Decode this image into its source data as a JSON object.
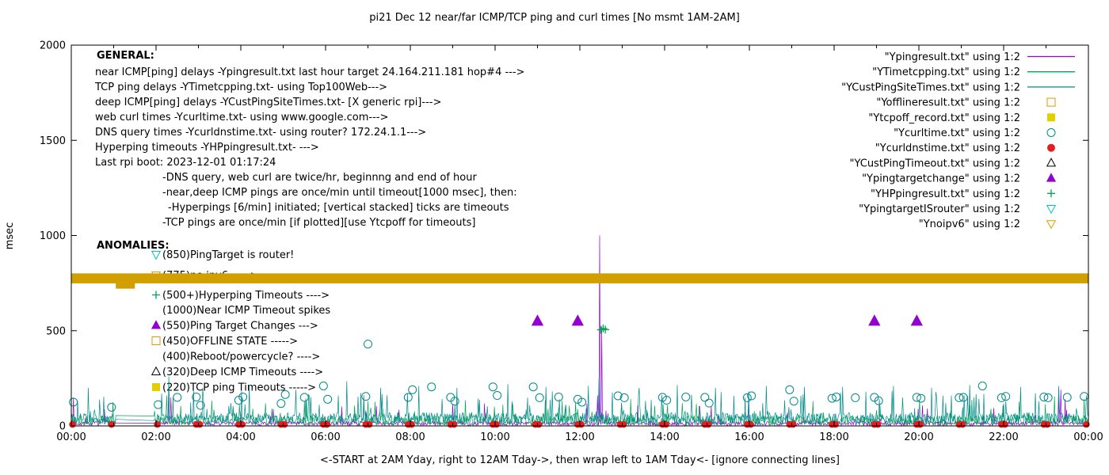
{
  "title": "pi21 Dec 12  near/far ICMP/TCP ping and curl times [No msmt 1AM-2AM]",
  "ylabel": "msec",
  "xlabel": "<-START at 2AM Yday, right to 12AM Tday->, then wrap left to 1AM Tday<- [ignore connecting lines]",
  "general": {
    "heading": "GENERAL:",
    "lines": [
      {
        "indent": 0,
        "text": "near ICMP[ping] delays -Ypingresult.txt last hour target 24.164.211.181 hop#4 --->"
      },
      {
        "indent": 0,
        "text": "TCP ping delays -YTimetcpping.txt- using Top100Web--->"
      },
      {
        "indent": 0,
        "text": "deep ICMP[ping] delays -YCustPingSiteTimes.txt- [X generic rpi]--->"
      },
      {
        "indent": 0,
        "text": "web curl times -Ycurltime.txt- using www.google.com--->"
      },
      {
        "indent": 0,
        "text": "DNS query times -Ycurldnstime.txt- using router? 172.24.1.1--->"
      },
      {
        "indent": 0,
        "text": "Hyperping timeouts -YHPpingresult.txt- --->"
      },
      {
        "indent": 0,
        "text": "Last rpi boot: 2023-12-01 01:17:24"
      },
      {
        "indent": 1,
        "text": "-DNS query, web curl are twice/hr, beginnng and end of hour"
      },
      {
        "indent": 1,
        "text": "-near,deep ICMP pings are once/min until timeout[1000 msec], then:"
      },
      {
        "indent": 2,
        "text": "-Hyperpings [6/min] initiated; [vertical stacked] ticks are timeouts"
      },
      {
        "indent": 1,
        "text": "-TCP pings are once/min [if plotted][use Ytcpoff for timeouts]"
      }
    ]
  },
  "anomalies": {
    "heading": "ANOMALIES:",
    "items": [
      {
        "icon": "triangle-down-open",
        "color": "#00c3c3",
        "text": "(850)PingTarget is router!"
      },
      {
        "icon": "triangle-down-open",
        "color": "#e69500",
        "text": "(775)no ipv6 ----->"
      },
      {
        "icon": "plus",
        "color": "#00a550",
        "text": "(500+)Hyperping Timeouts ---->"
      },
      {
        "icon": null,
        "color": null,
        "text": "(1000)Near ICMP Timeout spikes"
      },
      {
        "icon": "triangle-up-filled",
        "color": "#9400d3",
        "text": "(550)Ping Target Changes --->"
      },
      {
        "icon": "square-open",
        "color": "#e69500",
        "text": "(450)OFFLINE STATE ----->"
      },
      {
        "icon": null,
        "color": null,
        "text": "(400)Reboot/powercycle? ---->"
      },
      {
        "icon": "triangle-up-open",
        "color": "#000000",
        "text": "(320)Deep ICMP Timeouts ---->"
      },
      {
        "icon": "square-filled",
        "color": "#e3cf00",
        "text": "(220)TCP ping Timeouts ----->"
      }
    ]
  },
  "legend": [
    {
      "label": "\"Ypingresult.txt\" using 1:2",
      "sample": "line",
      "color": "#9400d3"
    },
    {
      "label": "\"YTimetcpping.txt\" using 1:2",
      "sample": "line",
      "color": "#00a550"
    },
    {
      "label": "\"YCustPingSiteTimes.txt\" using 1:2",
      "sample": "line",
      "color": "#008b8b"
    },
    {
      "label": "\"Yofflineresult.txt\" using 1:2",
      "sample": "square-open",
      "color": "#e69500"
    },
    {
      "label": "\"Ytcpoff_record.txt\" using 1:2",
      "sample": "square-filled",
      "color": "#e3cf00"
    },
    {
      "label": "\"Ycurltime.txt\" using 1:2",
      "sample": "circle-open",
      "color": "#008b8b"
    },
    {
      "label": "\"Ycurldnstime.txt\" using 1:2",
      "sample": "circle-filled",
      "color": "#e02020"
    },
    {
      "label": "\"YCustPingTimeout.txt\" using 1:2",
      "sample": "triangle-up-open",
      "color": "#000000"
    },
    {
      "label": "\"Ypingtargetchange\" using 1:2",
      "sample": "triangle-up-filled",
      "color": "#9400d3"
    },
    {
      "label": "\"YHPpingresult.txt\" using 1:2",
      "sample": "plus",
      "color": "#00a550"
    },
    {
      "label": "\"YpingtargetISrouter\" using 1:2",
      "sample": "triangle-down-open",
      "color": "#00c3c3"
    },
    {
      "label": "\"Ynoipv6\" using 1:2",
      "sample": "triangle-down-open",
      "color": "#e69500"
    }
  ],
  "chart_data": {
    "type": "line",
    "title": "pi21 Dec 12  near/far ICMP/TCP ping and curl times [No msmt 1AM-2AM]",
    "xlabel": "<-START at 2AM Yday, right to 12AM Tday->, then wrap left to 1AM Tday<- [ignore connecting lines]",
    "ylabel": "msec",
    "xlim": [
      0,
      24
    ],
    "ylim": [
      0,
      2000
    ],
    "yticks": [
      0,
      500,
      1000,
      1500,
      2000
    ],
    "xtick_labels": [
      "00:00",
      "02:00",
      "04:00",
      "06:00",
      "08:00",
      "10:00",
      "12:00",
      "14:00",
      "16:00",
      "18:00",
      "20:00",
      "22:00",
      "00:00"
    ],
    "gap_hours": [
      1,
      2
    ],
    "legend_position": "top-right",
    "grid": false,
    "series": [
      {
        "name": "Ypingresult.txt",
        "style": "line",
        "color": "#9400d3",
        "seed": 7,
        "base": [
          2,
          25
        ],
        "spike_chance": 0.03,
        "spike": [
          35,
          120
        ],
        "events": [
          [
            0.05,
            150
          ],
          [
            2.3,
            190
          ],
          [
            2.35,
            150
          ],
          [
            12.42,
            160
          ],
          [
            12.47,
            1000
          ],
          [
            12.52,
            520
          ],
          [
            23.3,
            160
          ],
          [
            23.35,
            190
          ],
          [
            23.45,
            140
          ]
        ]
      },
      {
        "name": "YTimetcpping.txt",
        "style": "line",
        "color": "#00a550",
        "seed": 13,
        "base": [
          3,
          55
        ],
        "spike_chance": 0.05,
        "spike": [
          60,
          140
        ],
        "events": [
          [
            2.25,
            160
          ],
          [
            2.4,
            150
          ],
          [
            5.5,
            130
          ],
          [
            9.3,
            135
          ],
          [
            13.2,
            140
          ],
          [
            17.5,
            130
          ],
          [
            21.3,
            150
          ],
          [
            23.2,
            155
          ],
          [
            23.9,
            140
          ]
        ]
      },
      {
        "name": "YCustPingSiteTimes.txt",
        "style": "line",
        "color": "#008b8b",
        "seed": 21,
        "base": [
          10,
          70
        ],
        "spike_chance": 0.08,
        "spike": [
          75,
          190
        ],
        "events": [
          [
            0.4,
            200
          ],
          [
            2.3,
            260
          ],
          [
            3.1,
            200
          ],
          [
            4.2,
            215
          ],
          [
            5.3,
            190
          ],
          [
            6.5,
            235
          ],
          [
            7.3,
            200
          ],
          [
            8.2,
            210
          ],
          [
            9.1,
            200
          ],
          [
            10.3,
            220
          ],
          [
            11.2,
            205
          ],
          [
            12.2,
            210
          ],
          [
            12.45,
            250
          ],
          [
            13.4,
            200
          ],
          [
            14.3,
            215
          ],
          [
            15.2,
            200
          ],
          [
            16.4,
            210
          ],
          [
            17.3,
            205
          ],
          [
            18.2,
            205
          ],
          [
            19.4,
            210
          ],
          [
            20.3,
            200
          ],
          [
            21.2,
            215
          ],
          [
            22.4,
            205
          ],
          [
            23.3,
            210
          ],
          [
            23.95,
            160
          ]
        ]
      },
      {
        "name": "Ycurltime.txt",
        "style": "circle-open",
        "color": "#008b8b",
        "size": 5,
        "points": [
          [
            0.05,
            125
          ],
          [
            0.95,
            98
          ],
          [
            2.05,
            112
          ],
          [
            2.5,
            150
          ],
          [
            2.95,
            152
          ],
          [
            3.05,
            108
          ],
          [
            3.95,
            135
          ],
          [
            4.05,
            152
          ],
          [
            4.95,
            118
          ],
          [
            5.05,
            165
          ],
          [
            5.5,
            150
          ],
          [
            5.95,
            210
          ],
          [
            6.05,
            140
          ],
          [
            6.95,
            155
          ],
          [
            7.0,
            430
          ],
          [
            7.95,
            150
          ],
          [
            8.05,
            190
          ],
          [
            8.5,
            205
          ],
          [
            8.95,
            150
          ],
          [
            9.05,
            130
          ],
          [
            9.95,
            205
          ],
          [
            10.05,
            160
          ],
          [
            10.9,
            205
          ],
          [
            11.05,
            148
          ],
          [
            11.5,
            152
          ],
          [
            11.95,
            140
          ],
          [
            12.05,
            125
          ],
          [
            12.9,
            158
          ],
          [
            13.05,
            148
          ],
          [
            13.95,
            150
          ],
          [
            14.05,
            135
          ],
          [
            14.5,
            152
          ],
          [
            14.95,
            150
          ],
          [
            15.05,
            120
          ],
          [
            15.95,
            148
          ],
          [
            16.05,
            158
          ],
          [
            16.95,
            190
          ],
          [
            17.05,
            130
          ],
          [
            17.95,
            145
          ],
          [
            18.05,
            152
          ],
          [
            18.5,
            148
          ],
          [
            18.95,
            150
          ],
          [
            19.05,
            132
          ],
          [
            19.95,
            150
          ],
          [
            20.05,
            145
          ],
          [
            20.95,
            148
          ],
          [
            21.05,
            150
          ],
          [
            21.5,
            210
          ],
          [
            21.95,
            148
          ],
          [
            22.05,
            155
          ],
          [
            22.95,
            152
          ],
          [
            23.05,
            148
          ],
          [
            23.5,
            150
          ],
          [
            23.9,
            155
          ]
        ]
      },
      {
        "name": "Ycurldnstime.txt",
        "style": "circle-filled",
        "color": "#e02020",
        "size": 4.3,
        "y": 8,
        "xs": [
          0.03,
          0.95,
          2.03,
          2.95,
          3.03,
          3.95,
          4.03,
          4.95,
          5.03,
          5.95,
          6.03,
          6.95,
          7.03,
          7.95,
          8.03,
          8.95,
          9.03,
          9.95,
          10.03,
          10.95,
          11.03,
          11.95,
          12.03,
          12.95,
          13.03,
          13.95,
          14.03,
          14.95,
          15.03,
          15.95,
          16.03,
          16.95,
          17.03,
          17.95,
          18.03,
          18.95,
          19.03,
          19.95,
          20.03,
          20.95,
          21.03,
          21.95,
          22.03,
          22.95,
          23.03,
          23.95
        ]
      },
      {
        "name": "Ypingtargetchange",
        "style": "triangle-up-filled",
        "color": "#9400d3",
        "size": 6.5,
        "points": [
          [
            11.0,
            550
          ],
          [
            11.95,
            550
          ],
          [
            18.95,
            550
          ],
          [
            19.95,
            550
          ]
        ]
      },
      {
        "name": "YHPpingresult.txt",
        "style": "plus",
        "color": "#00a550",
        "size": 5,
        "points": [
          [
            12.5,
            505
          ],
          [
            12.55,
            512
          ],
          [
            12.6,
            506
          ]
        ]
      },
      {
        "name": "Ynoipv6",
        "style": "band",
        "color": "#d1a000",
        "y": 775,
        "x_range": [
          0,
          24
        ],
        "thick_segment": [
          1.05,
          1.5
        ]
      }
    ]
  }
}
